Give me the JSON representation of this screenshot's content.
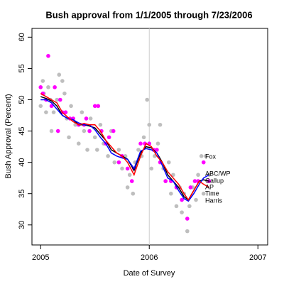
{
  "chart_data": {
    "type": "scatter",
    "title": "Bush approval from 1/1/2005 through 7/23/2006",
    "x_label": "Date of Survey",
    "y_label": "Bush Approval (Percent)",
    "xlim": [
      2004.92,
      2007.09
    ],
    "ylim": [
      26.8,
      61.4
    ],
    "xticks": [
      2005,
      2006,
      2007
    ],
    "yticks": [
      30,
      35,
      40,
      45,
      50,
      55,
      60
    ],
    "vline": 2006,
    "vline_color": "#cccccc",
    "series": [
      {
        "mode": "points",
        "color": "#bebebe",
        "x": [
          2005.0,
          2005.02,
          2005.03,
          2005.05,
          2005.07,
          2005.09,
          2005.1,
          2005.12,
          2005.15,
          2005.17,
          2005.2,
          2005.22,
          2005.24,
          2005.26,
          2005.28,
          2005.32,
          2005.35,
          2005.38,
          2005.4,
          2005.43,
          2005.46,
          2005.5,
          2005.52,
          2005.55,
          2005.58,
          2005.62,
          2005.65,
          2005.68,
          2005.72,
          2005.75,
          2005.78,
          2005.8,
          2005.82,
          2005.85,
          2005.87,
          2005.9,
          2005.93,
          2005.95,
          2005.98,
          2006.0,
          2006.02,
          2006.05,
          2006.08,
          2006.1,
          2006.13,
          2006.15,
          2006.18,
          2006.2,
          2006.22,
          2006.25,
          2006.28,
          2006.3,
          2006.32,
          2006.35,
          2006.37,
          2006.4,
          2006.43,
          2006.45,
          2006.48,
          2006.5,
          2006.52,
          2006.55
        ],
        "values": [
          49,
          53,
          51,
          48,
          52,
          50,
          45,
          48,
          50,
          54,
          53,
          51,
          47,
          44,
          49,
          46,
          43,
          48,
          45,
          42,
          47,
          44,
          42,
          46,
          43,
          41,
          45,
          40,
          42,
          39,
          41,
          36,
          38,
          35,
          40,
          42,
          41,
          44,
          50,
          46,
          39,
          41,
          43,
          46,
          39,
          37,
          40,
          35,
          38,
          33,
          36,
          32,
          35,
          29,
          33,
          36,
          34,
          38,
          41,
          35,
          41,
          38
        ]
      },
      {
        "mode": "points",
        "color": "#ff00ff",
        "x": [
          2005.0,
          2005.02,
          2005.05,
          2005.07,
          2005.1,
          2005.13,
          2005.16,
          2005.18,
          2005.2,
          2005.23,
          2005.27,
          2005.3,
          2005.35,
          2005.4,
          2005.42,
          2005.45,
          2005.5,
          2005.53,
          2005.56,
          2005.6,
          2005.63,
          2005.67,
          2005.72,
          2005.75,
          2005.8,
          2005.84,
          2005.86,
          2005.92,
          2005.96,
          2006.0,
          2006.04,
          2006.07,
          2006.1,
          2006.15,
          2006.2,
          2006.25,
          2006.3,
          2006.35,
          2006.38,
          2006.42,
          2006.45,
          2006.5,
          2006.55
        ],
        "values": [
          52,
          51,
          50,
          57,
          49,
          52,
          45,
          50,
          48,
          48,
          47,
          47,
          46,
          46,
          47,
          45,
          49,
          49,
          45,
          43,
          44,
          45,
          40,
          41,
          39,
          37,
          39,
          43,
          43,
          43,
          42,
          42,
          40,
          37,
          37,
          36,
          34,
          31,
          36,
          37,
          37,
          40,
          37
        ]
      },
      {
        "mode": "line",
        "color": "#000000",
        "x": [
          2005.0,
          2005.05,
          2005.1,
          2005.15,
          2005.2,
          2005.25,
          2005.3,
          2005.35,
          2005.4,
          2005.45,
          2005.5,
          2005.55,
          2005.6,
          2005.65,
          2005.7,
          2005.75,
          2005.8,
          2005.86,
          2005.92,
          2005.97,
          2006.02,
          2006.07,
          2006.12,
          2006.17,
          2006.22,
          2006.27,
          2006.32,
          2006.36,
          2006.41,
          2006.46,
          2006.5,
          2006.55
        ],
        "values": [
          50.5,
          50.2,
          49.8,
          49,
          47.5,
          47,
          46.8,
          46,
          46,
          45.8,
          45.5,
          44.5,
          43.5,
          42,
          41.5,
          41,
          40.5,
          38.7,
          41.5,
          42.5,
          42.3,
          41.5,
          40,
          38,
          37,
          36,
          34.5,
          34,
          35.5,
          37,
          37.2,
          37
        ]
      },
      {
        "mode": "line",
        "color": "#0000ff",
        "x": [
          2005.0,
          2005.05,
          2005.1,
          2005.15,
          2005.2,
          2005.25,
          2005.3,
          2005.35,
          2005.4,
          2005.45,
          2005.5,
          2005.55,
          2005.6,
          2005.65,
          2005.7,
          2005.75,
          2005.8,
          2005.86,
          2005.92,
          2005.97,
          2006.02,
          2006.07,
          2006.12,
          2006.17,
          2006.22,
          2006.27,
          2006.32,
          2006.36,
          2006.41,
          2006.46,
          2006.5,
          2006.55
        ],
        "values": [
          50,
          50,
          49.5,
          48.5,
          47.5,
          47,
          46.8,
          46.3,
          46,
          46,
          45.2,
          44,
          43,
          41.5,
          41,
          40.7,
          40.5,
          39,
          41.8,
          42.2,
          42,
          41.5,
          39.5,
          37.5,
          37,
          35.5,
          34.2,
          33.8,
          35,
          36.5,
          37.5,
          38
        ]
      },
      {
        "mode": "line",
        "color": "#ff0000",
        "x": [
          2005.0,
          2005.05,
          2005.1,
          2005.15,
          2005.2,
          2005.25,
          2005.3,
          2005.35,
          2005.4,
          2005.45,
          2005.5,
          2005.55,
          2005.6,
          2005.65,
          2005.7,
          2005.75,
          2005.8,
          2005.86,
          2005.92,
          2005.97,
          2006.02,
          2006.07,
          2006.12,
          2006.17,
          2006.22,
          2006.27,
          2006.32,
          2006.36,
          2006.41,
          2006.46,
          2006.5,
          2006.55
        ],
        "values": [
          51,
          50.5,
          50,
          49.5,
          48,
          47.2,
          46.5,
          46,
          46.2,
          46,
          46,
          45,
          43.5,
          42.5,
          41.5,
          41,
          40,
          38,
          41,
          43,
          42.5,
          41,
          40,
          38.5,
          37.5,
          36.5,
          35,
          34,
          35.5,
          37,
          36.5,
          36
        ]
      }
    ],
    "annotations": [
      {
        "text": "Fox",
        "color": "#bebebe"
      },
      {
        "text": "ABC/WP",
        "color": "#bebebe"
      },
      {
        "text": "Gallup",
        "color": "#ff00ff"
      },
      {
        "text": "AP",
        "color": "#bebebe"
      },
      {
        "text": "Time",
        "color": "#bebebe"
      },
      {
        "text": "Harris",
        "color": "#bebebe"
      }
    ]
  }
}
